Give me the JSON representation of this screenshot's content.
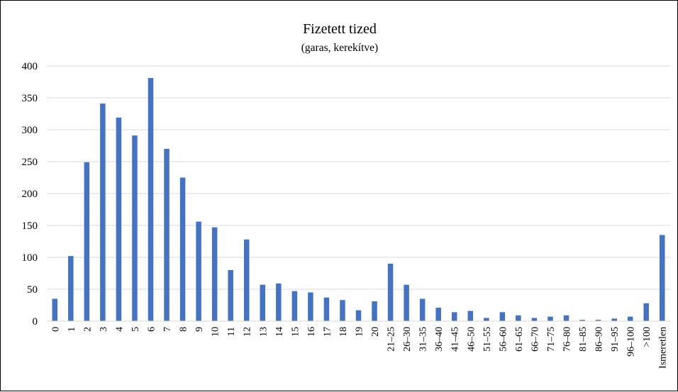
{
  "chart_data": {
    "type": "bar",
    "title": "Fizetett tized",
    "subtitle": "(garas, kerekítve)",
    "xlabel": "",
    "ylabel": "",
    "ylim": [
      0,
      400
    ],
    "yticks": [
      0,
      50,
      100,
      150,
      200,
      250,
      300,
      350,
      400
    ],
    "grid": true,
    "legend": "none",
    "bar_color": "#4472C4",
    "categories": [
      "0",
      "1",
      "2",
      "3",
      "4",
      "5",
      "6",
      "7",
      "8",
      "9",
      "10",
      "11",
      "12",
      "13",
      "14",
      "15",
      "16",
      "17",
      "18",
      "19",
      "20",
      "21–25",
      "26–30",
      "31–35",
      "36–40",
      "41–45",
      "46–50",
      "51–55",
      "56–60",
      "61–65",
      "66–70",
      "71–75",
      "76–80",
      "81–85",
      "86–90",
      "91–95",
      "96–100",
      ">100",
      "Ismeretlen"
    ],
    "values": [
      35,
      102,
      249,
      341,
      319,
      291,
      381,
      270,
      225,
      156,
      147,
      80,
      128,
      57,
      59,
      47,
      45,
      37,
      33,
      17,
      31,
      90,
      57,
      35,
      21,
      14,
      16,
      5,
      14,
      9,
      5,
      7,
      9,
      2,
      2,
      4,
      7,
      28,
      135
    ]
  }
}
